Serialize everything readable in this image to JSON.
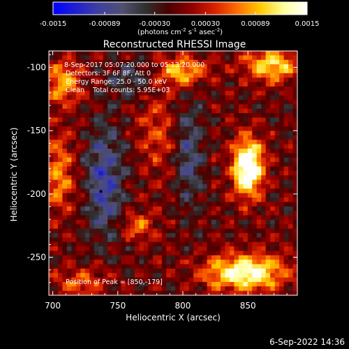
{
  "colorbar": {
    "min": -0.0015,
    "max": 0.0015,
    "ticks": [
      {
        "value": -0.0015,
        "label": "-0.0015"
      },
      {
        "value": -0.00089,
        "label": "-0.00089"
      },
      {
        "value": -0.0003,
        "label": "-0.00030"
      },
      {
        "value": 0.0003,
        "label": "0.00030"
      },
      {
        "value": 0.00089,
        "label": "0.00089"
      },
      {
        "value": 0.0015,
        "label": "0.0015"
      }
    ],
    "units_main": "(photons cm",
    "units_sup1": "-2",
    "units_mid1": " s",
    "units_sup2": "-1",
    "units_mid2": " asec",
    "units_sup3": "-2",
    "units_end": ")",
    "colors": [
      "#0000ff",
      "#2020d0",
      "#4040a0",
      "#505070",
      "#303030",
      "#4a0000",
      "#900000",
      "#d82000",
      "#ff7000",
      "#ffcc00",
      "#ffffa0",
      "#ffffff"
    ]
  },
  "chart_data": {
    "type": "heatmap",
    "title": "Reconstructed RHESSI Image",
    "xlabel": "Heliocentric X (arcsec)",
    "ylabel": "Heliocentric Y (arcsec)",
    "xlim": [
      697,
      888
    ],
    "ylim": [
      -280,
      -87
    ],
    "xticks": [
      {
        "value": 700,
        "label": "700"
      },
      {
        "value": 750,
        "label": "750"
      },
      {
        "value": 800,
        "label": "800"
      },
      {
        "value": 850,
        "label": "850"
      }
    ],
    "yticks": [
      {
        "value": -100,
        "label": "-100"
      },
      {
        "value": -150,
        "label": "-150"
      },
      {
        "value": -200,
        "label": "-200"
      },
      {
        "value": -250,
        "label": "-250"
      }
    ],
    "annotations": [
      " 8-Sep-2017 05:07:20.000 to 05:13:20.000",
      "Detectors: 3F 6F 8F, Att 0",
      "Energy Range: 25.0 - 50.0 keV",
      "Clean    Total counts: 5.95E+03"
    ],
    "peak_label": "Position of Peak = [850,-179]",
    "peak": [
      850,
      -179
    ],
    "marker": [
      737,
      -198
    ],
    "sources": [
      {
        "x": 850,
        "y": -179,
        "sx": 8,
        "sy": 16,
        "amp": 0.0019
      },
      {
        "x": 848,
        "y": -262,
        "sx": 22,
        "sy": 10,
        "amp": 0.0015
      },
      {
        "x": 800,
        "y": -103,
        "sx": 12,
        "sy": 8,
        "amp": 0.0011
      },
      {
        "x": 868,
        "y": -98,
        "sx": 14,
        "sy": 9,
        "amp": 0.0012
      },
      {
        "x": 708,
        "y": -112,
        "sx": 10,
        "sy": 12,
        "amp": 0.0009
      },
      {
        "x": 705,
        "y": -185,
        "sx": 8,
        "sy": 22,
        "amp": 0.0008
      },
      {
        "x": 765,
        "y": -225,
        "sx": 9,
        "sy": 8,
        "amp": 0.0007
      },
      {
        "x": 722,
        "y": -270,
        "sx": 14,
        "sy": 8,
        "amp": 0.0006
      },
      {
        "x": 780,
        "y": -150,
        "sx": 10,
        "sy": 25,
        "amp": 0.0005
      },
      {
        "x": 740,
        "y": -190,
        "sx": 10,
        "sy": 30,
        "amp": -0.0009
      },
      {
        "x": 805,
        "y": -170,
        "sx": 8,
        "sy": 30,
        "amp": -0.0006
      },
      {
        "x": 760,
        "y": -110,
        "sx": 12,
        "sy": 10,
        "amp": -0.0005
      }
    ]
  },
  "footer": {
    "timestamp": "6-Sep-2022 14:36"
  }
}
